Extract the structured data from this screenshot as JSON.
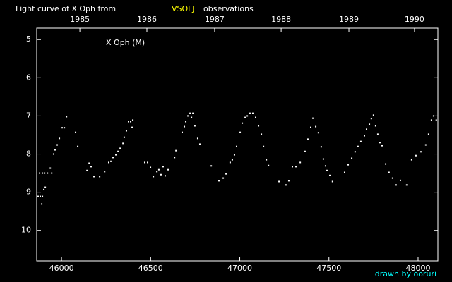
{
  "chart_data": {
    "type": "scatter",
    "title": "Light curve of X Oph from",
    "source": "VSOLJ",
    "title_suffix": "observations",
    "annotation": "X Oph (M)",
    "credit": "drawn by ooruri",
    "color": "#ffffff",
    "source_color": "#ffff00",
    "credit_color": "#00ffff",
    "xlim": [
      45861,
      48111
    ],
    "xticks": [
      46000,
      46500,
      47000,
      47500,
      48000
    ],
    "x2ticks": [
      {
        "value": 46103,
        "label": "1985"
      },
      {
        "value": 46479,
        "label": "1986"
      },
      {
        "value": 46859,
        "label": "1987"
      },
      {
        "value": 47232,
        "label": "1988"
      },
      {
        "value": 47612,
        "label": "1989"
      },
      {
        "value": 47980,
        "label": "1990"
      }
    ],
    "ylim": [
      4.7,
      10.8
    ],
    "y_reversed": true,
    "yticks": [
      5,
      6,
      7,
      8,
      9,
      10
    ],
    "x": [
      45869,
      45881,
      45893,
      45889,
      45901,
      45909,
      45877,
      45893,
      45905,
      45921,
      45937,
      45945,
      45956,
      45964,
      45976,
      45988,
      46004,
      46016,
      46028,
      46079,
      46091,
      46143,
      46155,
      46166,
      46182,
      46214,
      46242,
      46265,
      46277,
      46289,
      46305,
      46317,
      46329,
      46345,
      46352,
      46364,
      46376,
      46388,
      46396,
      46400,
      46467,
      46483,
      46499,
      46515,
      46535,
      46546,
      46558,
      46570,
      46582,
      46598,
      46634,
      46642,
      46677,
      46689,
      46697,
      46709,
      46721,
      46729,
      46737,
      46748,
      46764,
      46776,
      46840,
      46883,
      46907,
      46923,
      46946,
      46958,
      46970,
      46982,
      47002,
      47014,
      47030,
      47042,
      47057,
      47073,
      47089,
      47105,
      47121,
      47133,
      47149,
      47161,
      47220,
      47259,
      47275,
      47295,
      47315,
      47339,
      47366,
      47382,
      47398,
      47410,
      47426,
      47441,
      47457,
      47469,
      47481,
      47489,
      47505,
      47520,
      47588,
      47608,
      47628,
      47647,
      47663,
      47679,
      47699,
      47711,
      47727,
      47738,
      47750,
      47762,
      47774,
      47786,
      47798,
      47818,
      47837,
      47857,
      47877,
      47901,
      47936,
      47964,
      47988,
      48016,
      48043,
      48059,
      48075,
      48087,
      48102
    ],
    "values": [
      9.11,
      9.11,
      9.11,
      9.31,
      8.93,
      8.87,
      8.5,
      8.5,
      8.5,
      8.5,
      8.37,
      8.5,
      8.0,
      7.89,
      7.76,
      7.59,
      7.31,
      7.31,
      7.02,
      7.43,
      7.8,
      8.43,
      8.24,
      8.33,
      8.59,
      8.59,
      8.46,
      8.22,
      8.19,
      8.09,
      8.02,
      7.93,
      7.85,
      7.72,
      7.56,
      7.39,
      7.15,
      7.15,
      7.3,
      7.11,
      8.22,
      8.22,
      8.35,
      8.59,
      8.46,
      8.41,
      8.54,
      8.33,
      8.57,
      8.41,
      8.09,
      7.91,
      7.43,
      7.28,
      7.15,
      7.0,
      6.93,
      7.04,
      6.93,
      7.26,
      7.59,
      7.74,
      8.31,
      8.7,
      8.63,
      8.52,
      8.22,
      8.15,
      8.02,
      7.8,
      7.43,
      7.19,
      7.04,
      7.0,
      6.93,
      6.93,
      7.04,
      7.26,
      7.48,
      7.8,
      8.15,
      8.3,
      8.72,
      8.81,
      8.7,
      8.33,
      8.33,
      8.22,
      7.93,
      7.61,
      7.3,
      7.06,
      7.28,
      7.44,
      7.81,
      8.13,
      8.31,
      8.43,
      8.56,
      8.72,
      8.48,
      8.28,
      8.11,
      7.94,
      7.8,
      7.67,
      7.52,
      7.35,
      7.22,
      7.07,
      6.98,
      7.26,
      7.48,
      7.7,
      7.78,
      8.26,
      8.48,
      8.63,
      8.81,
      8.69,
      8.81,
      8.15,
      8.04,
      7.94,
      7.76,
      7.48,
      7.11,
      7.0,
      7.11
    ]
  }
}
